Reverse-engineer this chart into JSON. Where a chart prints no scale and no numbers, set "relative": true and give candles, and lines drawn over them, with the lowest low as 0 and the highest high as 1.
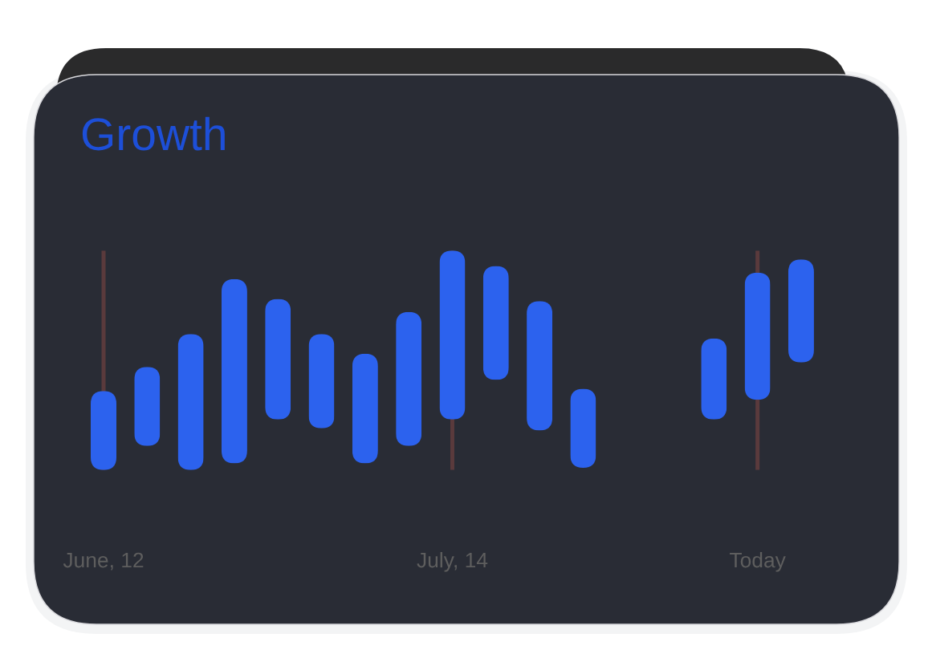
{
  "chart_data": {
    "type": "candlestick",
    "title": "Growth",
    "categories": [
      "June, 12",
      null,
      null,
      null,
      null,
      null,
      null,
      null,
      "July, 14",
      null,
      null,
      null,
      null,
      null,
      null,
      "Today",
      null
    ],
    "ohlc": [
      [
        0,
        0.36,
        0,
        0.36
      ],
      [
        0.11,
        0.47,
        0.11,
        0.47
      ],
      [
        0,
        0.62,
        0,
        0.62
      ],
      [
        0.03,
        0.87,
        0.03,
        0.87
      ],
      [
        0.23,
        0.78,
        0.23,
        0.78
      ],
      [
        0.19,
        0.62,
        0.19,
        0.62
      ],
      [
        0.03,
        0.53,
        0.03,
        0.53
      ],
      [
        0.11,
        0.72,
        0.11,
        0.72
      ],
      [
        0.23,
        1,
        0.23,
        1
      ],
      [
        0.41,
        0.93,
        0.41,
        0.93
      ],
      [
        0.18,
        0.77,
        0.18,
        0.77
      ],
      [
        0.01,
        0.37,
        0.01,
        0.37
      ],
      null,
      null,
      [
        0.23,
        0.6,
        0.23,
        0.6
      ],
      [
        0.32,
        0.9,
        0.32,
        0.9
      ],
      [
        0.49,
        0.96,
        0.49,
        0.96
      ]
    ],
    "color": "#2c62ee",
    "relative": true,
    "tick_labels": "x",
    "ref_lines": [
      {
        "axis": "x",
        "value": "June, 12",
        "color": "#5a3a3c"
      },
      {
        "axis": "x",
        "value": "July, 14",
        "color": "#5a3a3c"
      },
      {
        "axis": "x",
        "value": "Today",
        "color": "#5a3a3c"
      }
    ]
  }
}
